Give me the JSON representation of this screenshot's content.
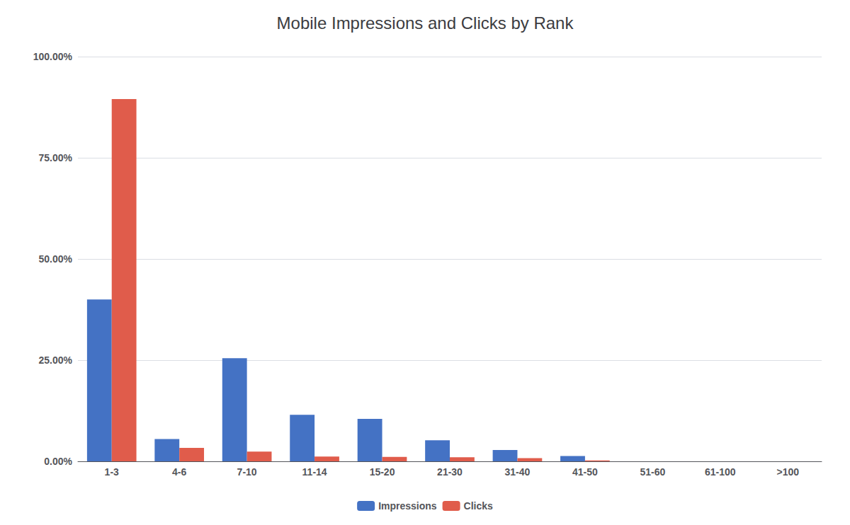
{
  "chart_data": {
    "type": "bar",
    "title": "Mobile Impressions and Clicks by Rank",
    "categories": [
      "1-3",
      "4-6",
      "7-10",
      "11-14",
      "15-20",
      "21-30",
      "31-40",
      "41-50",
      "51-60",
      "61-100",
      ">100"
    ],
    "series": [
      {
        "name": "Impressions",
        "color": "#4472c4",
        "values": [
          0.4,
          0.055,
          0.255,
          0.115,
          0.105,
          0.052,
          0.028,
          0.013,
          0.0,
          0.0,
          0.0
        ]
      },
      {
        "name": "Clicks",
        "color": "#e05c4b",
        "values": [
          0.895,
          0.033,
          0.024,
          0.012,
          0.011,
          0.01,
          0.008,
          0.002,
          0.0,
          0.0,
          0.0
        ]
      }
    ],
    "ylim": [
      0,
      1.0
    ],
    "yticks": [
      {
        "value": 0.0,
        "label": "0.00%"
      },
      {
        "value": 0.25,
        "label": "25.00%"
      },
      {
        "value": 0.5,
        "label": "50.00%"
      },
      {
        "value": 0.75,
        "label": "75.00%"
      },
      {
        "value": 1.0,
        "label": "100.00%"
      }
    ],
    "grid": true,
    "legend": "bottom"
  }
}
